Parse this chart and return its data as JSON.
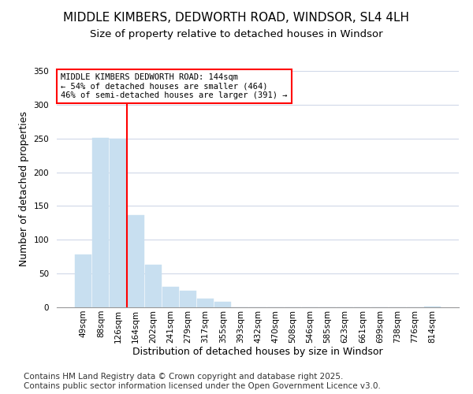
{
  "title": "MIDDLE KIMBERS, DEDWORTH ROAD, WINDSOR, SL4 4LH",
  "subtitle": "Size of property relative to detached houses in Windsor",
  "xlabel": "Distribution of detached houses by size in Windsor",
  "ylabel": "Number of detached properties",
  "categories": [
    "49sqm",
    "88sqm",
    "126sqm",
    "164sqm",
    "202sqm",
    "241sqm",
    "279sqm",
    "317sqm",
    "355sqm",
    "393sqm",
    "432sqm",
    "470sqm",
    "508sqm",
    "546sqm",
    "585sqm",
    "623sqm",
    "661sqm",
    "699sqm",
    "738sqm",
    "776sqm",
    "814sqm"
  ],
  "values": [
    78,
    251,
    250,
    136,
    63,
    30,
    25,
    13,
    8,
    0,
    0,
    0,
    0,
    0,
    0,
    0,
    0,
    0,
    0,
    0,
    1
  ],
  "bar_color": "#c8dff0",
  "vline_index": 2,
  "vline_color": "red",
  "ylim": [
    0,
    350
  ],
  "yticks": [
    0,
    50,
    100,
    150,
    200,
    250,
    300,
    350
  ],
  "annotation_text": "MIDDLE KIMBERS DEDWORTH ROAD: 144sqm\n← 54% of detached houses are smaller (464)\n46% of semi-detached houses are larger (391) →",
  "annotation_box_color": "#ffffff",
  "annotation_box_edge": "red",
  "footnote": "Contains HM Land Registry data © Crown copyright and database right 2025.\nContains public sector information licensed under the Open Government Licence v3.0.",
  "bg_color": "#ffffff",
  "grid_color": "#d0d8e8",
  "title_fontsize": 11,
  "subtitle_fontsize": 9.5,
  "label_fontsize": 9,
  "tick_fontsize": 7.5,
  "annotation_fontsize": 7.5,
  "footnote_fontsize": 7.5
}
